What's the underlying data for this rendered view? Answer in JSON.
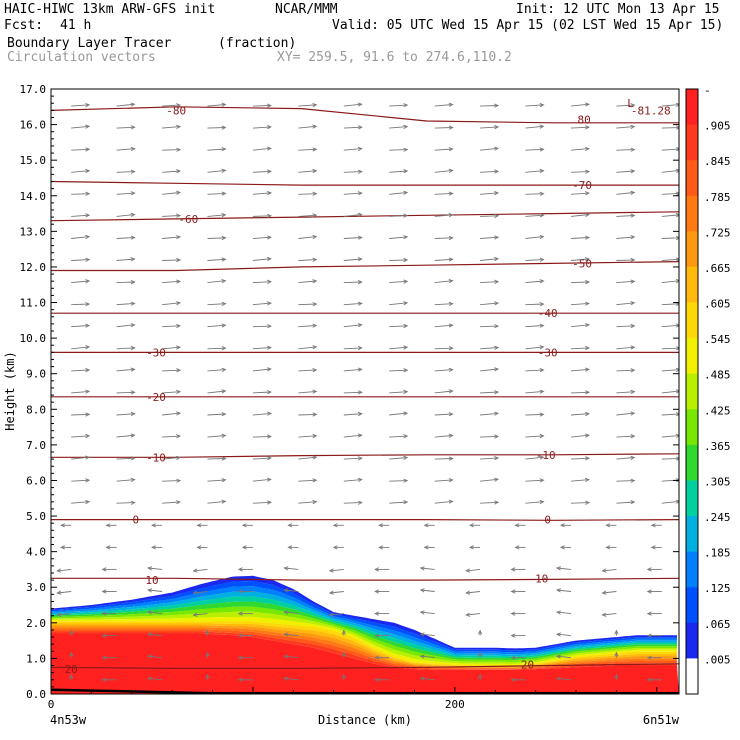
{
  "header": {
    "title": "HAIC-HIWC 13km ARW-GFS init",
    "org": "NCAR/MMM",
    "init": "Init: 12 UTC Mon 13 Apr 15",
    "fcst_label": "Fcst:",
    "fcst_value": "41 h",
    "valid": "Valid: 05 UTC Wed 15 Apr 15 (02 LST Wed 15 Apr 15)",
    "field": "Boundary Layer Tracer",
    "units": "(fraction)",
    "vectors": "Circulation vectors",
    "xy": "XY= 259.5, 91.6 to 274.6,110.2"
  },
  "chart_data": {
    "type": "heatmap",
    "ylabel": "Height (km)",
    "xlabel": "Distance (km)",
    "ylim": [
      0,
      17
    ],
    "xlim": [
      0,
      311
    ],
    "yticks": [
      "0.0",
      "1.0",
      "2.0",
      "3.0",
      "4.0",
      "5.0",
      "6.0",
      "7.0",
      "8.0",
      "9.0",
      "10.0",
      "11.0",
      "12.0",
      "13.0",
      "14.0",
      "15.0",
      "16.0",
      "17.0"
    ],
    "xticks": [
      {
        "value": 0,
        "label": "0"
      },
      {
        "value": 200,
        "label": "200"
      }
    ],
    "x_endpoints": {
      "left": "4n53w",
      "right": "6n51w"
    },
    "colorbar": {
      "labels": [
        "-",
        ".905",
        ".845",
        ".785",
        ".725",
        ".665",
        ".605",
        ".545",
        ".485",
        ".425",
        ".365",
        ".305",
        ".245",
        ".185",
        ".125",
        ".065",
        ".005"
      ],
      "colors": [
        "#ff2020",
        "#ff3a1c",
        "#ff5a18",
        "#ff7a14",
        "#ff9a10",
        "#ffba0c",
        "#ffd808",
        "#f0f000",
        "#b8f000",
        "#78e800",
        "#30d830",
        "#00d0a0",
        "#00b0e0",
        "#0080ff",
        "#0050ff",
        "#1a28f0",
        "#ffffff"
      ]
    },
    "tracer_surface": {
      "x": [
        0,
        20,
        40,
        60,
        75,
        90,
        100,
        110,
        120,
        130,
        140,
        150,
        160,
        170,
        180,
        190,
        200,
        210,
        220,
        230,
        240,
        250,
        260,
        270,
        280,
        290,
        300,
        311
      ],
      "z005": [
        2.4,
        2.5,
        2.65,
        2.85,
        3.1,
        3.3,
        3.32,
        3.2,
        2.95,
        2.6,
        2.3,
        2.2,
        2.1,
        2.0,
        1.8,
        1.55,
        1.3,
        1.3,
        1.3,
        1.28,
        1.3,
        1.4,
        1.5,
        1.55,
        1.6,
        1.65,
        1.65,
        1.65
      ],
      "z485": [
        2.05,
        2.05,
        2.05,
        2.05,
        2.05,
        2.05,
        2.05,
        2.0,
        1.95,
        1.9,
        1.8,
        1.6,
        1.3,
        1.05,
        0.9,
        0.85,
        0.82,
        0.8,
        0.8,
        0.8,
        0.85,
        0.95,
        1.05,
        1.1,
        1.15,
        1.2,
        1.2,
        1.2
      ],
      "z905": [
        1.7,
        1.7,
        1.7,
        1.7,
        1.7,
        1.65,
        1.6,
        1.5,
        1.4,
        1.3,
        1.15,
        1.0,
        0.85,
        0.75,
        0.7,
        0.68,
        0.68,
        0.68,
        0.68,
        0.68,
        0.7,
        0.72,
        0.75,
        0.78,
        0.8,
        0.8,
        0.8,
        0.8
      ]
    },
    "temperature_contours": [
      {
        "level": 20,
        "label": "20",
        "label_at": [
          [
            10,
            0.7
          ],
          [
            236,
            0.83
          ]
        ],
        "z": [
          0.75,
          0.72,
          0.72,
          0.75,
          0.8,
          0.85
        ]
      },
      {
        "level": 10,
        "label": "10",
        "label_at": [
          [
            50,
            3.2
          ],
          [
            243,
            3.25
          ]
        ],
        "z": [
          3.25,
          3.25,
          3.2,
          3.2,
          3.22,
          3.25
        ]
      },
      {
        "level": 0,
        "label": "0",
        "label_at": [
          [
            42,
            4.9
          ],
          [
            246,
            4.9
          ]
        ],
        "z": [
          4.9,
          4.9,
          4.9,
          4.9,
          4.88,
          4.9
        ]
      },
      {
        "level": -10,
        "label": "-10",
        "label_at": [
          [
            52,
            6.65
          ],
          [
            245,
            6.72
          ]
        ],
        "z": [
          6.65,
          6.65,
          6.7,
          6.72,
          6.72,
          6.75
        ]
      },
      {
        "level": -20,
        "label": "-20",
        "label_at": [
          [
            52,
            8.35
          ]
        ],
        "z": [
          8.35,
          8.35,
          8.35,
          8.35,
          8.35,
          8.35
        ]
      },
      {
        "level": -30,
        "label": "-30",
        "label_at": [
          [
            52,
            9.6
          ],
          [
            246,
            9.6
          ]
        ],
        "z": [
          9.6,
          9.6,
          9.6,
          9.6,
          9.6,
          9.6
        ]
      },
      {
        "level": -40,
        "label": "-40",
        "label_at": [
          [
            246,
            10.7
          ]
        ],
        "z": [
          10.7,
          10.7,
          10.7,
          10.7,
          10.7,
          10.7
        ]
      },
      {
        "level": -50,
        "label": "-50",
        "label_at": [
          [
            263,
            12.1
          ]
        ],
        "z": [
          11.9,
          11.9,
          12.0,
          12.05,
          12.1,
          12.15
        ]
      },
      {
        "level": -60,
        "label": "-60",
        "label_at": [
          [
            68,
            13.35
          ]
        ],
        "z": [
          13.3,
          13.35,
          13.4,
          13.45,
          13.5,
          13.55
        ]
      },
      {
        "level": -70,
        "label": "-70",
        "label_at": [
          [
            263,
            14.3
          ]
        ],
        "z": [
          14.4,
          14.35,
          14.3,
          14.3,
          14.3,
          14.3
        ]
      },
      {
        "level": -80,
        "label": "-80",
        "label_at": [
          [
            62,
            16.4
          ]
        ],
        "z": [
          16.4,
          16.5,
          16.45,
          16.1,
          16.05,
          16.05
        ]
      },
      {
        "label": "80",
        "label_at": [
          [
            264,
            16.15
          ]
        ]
      },
      {
        "label": "-81.28",
        "label_at": [
          [
            297,
            16.4
          ]
        ]
      },
      {
        "label": "L",
        "label_at": [
          [
            287,
            16.6
          ]
        ]
      }
    ]
  },
  "colors": {
    "contour": "#8b1a1a",
    "vector": "#777777",
    "axis": "#000000"
  }
}
